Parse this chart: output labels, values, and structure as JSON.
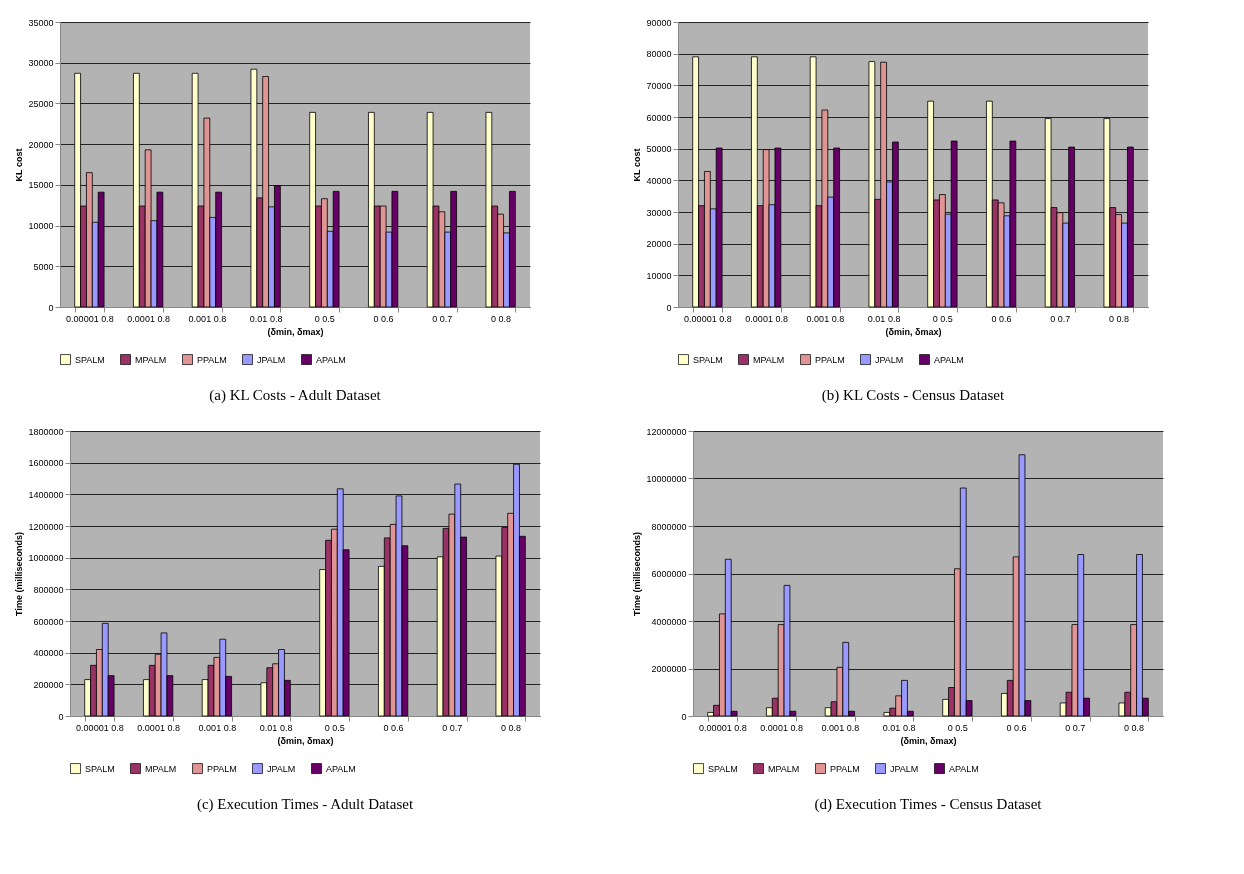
{
  "chart_data": [
    {
      "type": "bar",
      "title": "(a)  KL Costs - Adult Dataset",
      "xlabel": "(δmin, δmax)",
      "ylabel": "KL cost",
      "categories": [
        "0.00001 0.8",
        "0.0001 0.8",
        "0.001 0.8",
        "0.01 0.8",
        "0 0.5",
        "0 0.6",
        "0 0.7",
        "0 0.8"
      ],
      "ylim": [
        0,
        35000
      ],
      "yticks": [
        0,
        5000,
        10000,
        15000,
        20000,
        25000,
        30000,
        35000
      ],
      "grid": "y",
      "legend": "bottom",
      "series": [
        {
          "name": "SPALM",
          "color": "#ffffcc",
          "values": [
            28700,
            28700,
            28700,
            29200,
            23900,
            23900,
            23900,
            23900
          ]
        },
        {
          "name": "MPALM",
          "color": "#993366",
          "values": [
            12400,
            12400,
            12400,
            13400,
            12400,
            12400,
            12400,
            12400
          ]
        },
        {
          "name": "PPALM",
          "color": "#e09494",
          "values": [
            16500,
            19300,
            23200,
            28300,
            13300,
            12400,
            11700,
            11400
          ]
        },
        {
          "name": "JPALM",
          "color": "#9999ff",
          "values": [
            10400,
            10600,
            11000,
            12300,
            9300,
            9200,
            9200,
            9100
          ]
        },
        {
          "name": "APALM",
          "color": "#660066",
          "values": [
            14100,
            14100,
            14100,
            14900,
            14200,
            14200,
            14200,
            14200
          ]
        }
      ]
    },
    {
      "type": "bar",
      "title": "(b)  KL Costs - Census Dataset",
      "xlabel": "(δmin, δmax)",
      "ylabel": "KL cost",
      "categories": [
        "0.00001 0.8",
        "0.0001 0.8",
        "0.001 0.8",
        "0.01 0.8",
        "0 0.5",
        "0 0.6",
        "0 0.7",
        "0 0.8"
      ],
      "ylim": [
        0,
        90000
      ],
      "yticks": [
        0,
        10000,
        20000,
        30000,
        40000,
        50000,
        60000,
        70000,
        80000,
        90000
      ],
      "grid": "y",
      "legend": "bottom",
      "series": [
        {
          "name": "SPALM",
          "color": "#ffffcc",
          "values": [
            79000,
            79000,
            79000,
            77500,
            65000,
            65000,
            59500,
            59500
          ]
        },
        {
          "name": "MPALM",
          "color": "#993366",
          "values": [
            32000,
            32000,
            32000,
            34000,
            33800,
            33800,
            31400,
            31400
          ]
        },
        {
          "name": "PPALM",
          "color": "#e09494",
          "values": [
            42800,
            49700,
            62200,
            77300,
            35500,
            32900,
            29800,
            29200
          ]
        },
        {
          "name": "JPALM",
          "color": "#9999ff",
          "values": [
            31000,
            32300,
            34700,
            39500,
            29300,
            28800,
            26500,
            26500
          ]
        },
        {
          "name": "APALM",
          "color": "#660066",
          "values": [
            50200,
            50200,
            50200,
            52100,
            52400,
            52400,
            50500,
            50500
          ]
        }
      ]
    },
    {
      "type": "bar",
      "title": "(c)  Execution Times - Adult Dataset",
      "xlabel": "(δmin, δmax)",
      "ylabel": "Time (milliseconds)",
      "categories": [
        "0.00001 0.8",
        "0.0001 0.8",
        "0.001 0.8",
        "0.01 0.8",
        "0 0.5",
        "0 0.6",
        "0 0.7",
        "0 0.8"
      ],
      "ylim": [
        0,
        1800000
      ],
      "yticks": [
        0,
        200000,
        400000,
        600000,
        800000,
        1000000,
        1200000,
        1400000,
        1600000,
        1800000
      ],
      "grid": "y",
      "legend": "bottom",
      "series": [
        {
          "name": "SPALM",
          "color": "#ffffcc",
          "values": [
            230000,
            230000,
            230000,
            210000,
            925000,
            945000,
            1005000,
            1010000
          ]
        },
        {
          "name": "MPALM",
          "color": "#993366",
          "values": [
            320000,
            320000,
            320000,
            305000,
            1110000,
            1125000,
            1185000,
            1190000
          ]
        },
        {
          "name": "PPALM",
          "color": "#e09494",
          "values": [
            420000,
            390000,
            370000,
            330000,
            1180000,
            1210000,
            1275000,
            1280000
          ]
        },
        {
          "name": "JPALM",
          "color": "#9999ff",
          "values": [
            585000,
            525000,
            485000,
            420000,
            1435000,
            1390000,
            1465000,
            1590000
          ]
        },
        {
          "name": "APALM",
          "color": "#660066",
          "values": [
            255000,
            255000,
            250000,
            225000,
            1050000,
            1075000,
            1130000,
            1135000
          ]
        }
      ]
    },
    {
      "type": "bar",
      "title": "(d)  Execution Times - Census Dataset",
      "xlabel": "(δmin, δmax)",
      "ylabel": "Time (milliseconds)",
      "categories": [
        "0.00001 0.8",
        "0.0001 0.8",
        "0.001 0.8",
        "0.01 0.8",
        "0 0.5",
        "0 0.6",
        "0 0.7",
        "0 0.8"
      ],
      "ylim": [
        0,
        12000000
      ],
      "yticks": [
        0,
        2000000,
        4000000,
        6000000,
        8000000,
        10000000,
        12000000
      ],
      "grid": "y",
      "legend": "bottom",
      "series": [
        {
          "name": "SPALM",
          "color": "#ffffcc",
          "values": [
            150000,
            350000,
            350000,
            150000,
            700000,
            950000,
            550000,
            550000
          ]
        },
        {
          "name": "MPALM",
          "color": "#993366",
          "values": [
            450000,
            750000,
            600000,
            330000,
            1200000,
            1500000,
            1000000,
            1000000
          ]
        },
        {
          "name": "PPALM",
          "color": "#e09494",
          "values": [
            4300000,
            3850000,
            2050000,
            850000,
            6200000,
            6700000,
            3850000,
            3850000
          ]
        },
        {
          "name": "JPALM",
          "color": "#9999ff",
          "values": [
            6600000,
            5500000,
            3100000,
            1500000,
            9600000,
            11000000,
            6800000,
            6800000
          ]
        },
        {
          "name": "APALM",
          "color": "#660066",
          "values": [
            200000,
            200000,
            200000,
            200000,
            650000,
            650000,
            750000,
            750000
          ]
        }
      ]
    }
  ]
}
